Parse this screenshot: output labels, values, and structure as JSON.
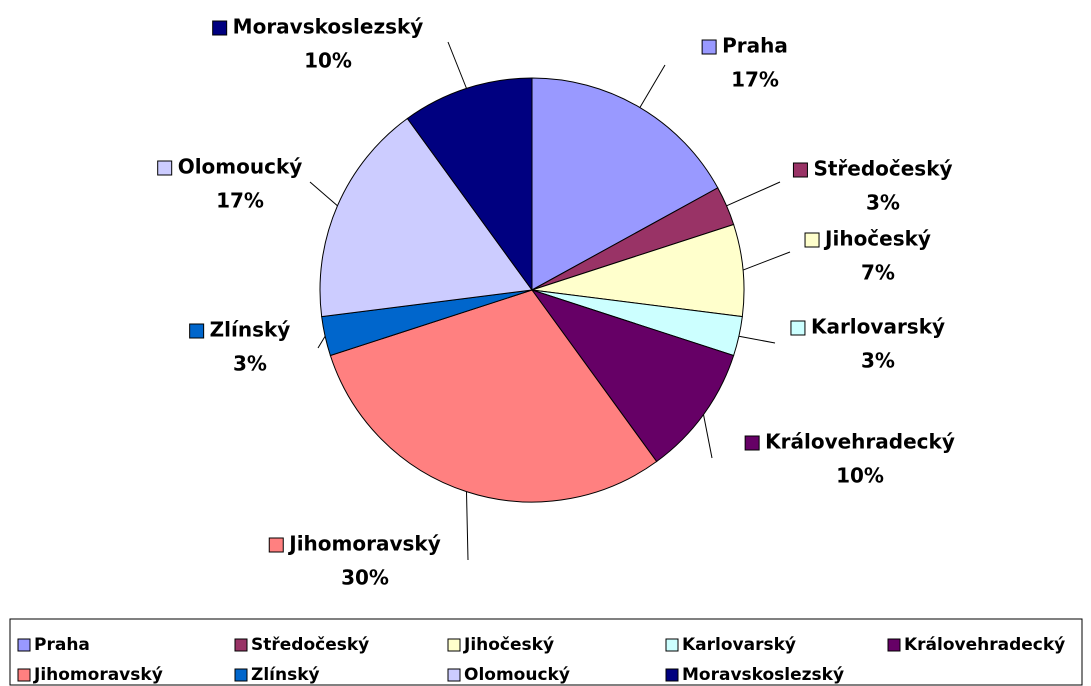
{
  "chart_data": {
    "type": "pie",
    "categories": [
      "Praha",
      "Středočeský",
      "Jihočeský",
      "Karlovarský",
      "Královehradecký",
      "Jihomoravský",
      "Zlínský",
      "Olomoucký",
      "Moravskoslezský"
    ],
    "values": [
      17,
      3,
      7,
      3,
      10,
      30,
      3,
      17,
      10
    ],
    "value_labels": [
      "17%",
      "3%",
      "7%",
      "3%",
      "10%",
      "30%",
      "3%",
      "17%",
      "10%"
    ],
    "colors": [
      "#9999ff",
      "#993366",
      "#ffffcc",
      "#ccffff",
      "#660066",
      "#ff8080",
      "#0066cc",
      "#ccccff",
      "#000080"
    ],
    "legend": "bottom"
  }
}
